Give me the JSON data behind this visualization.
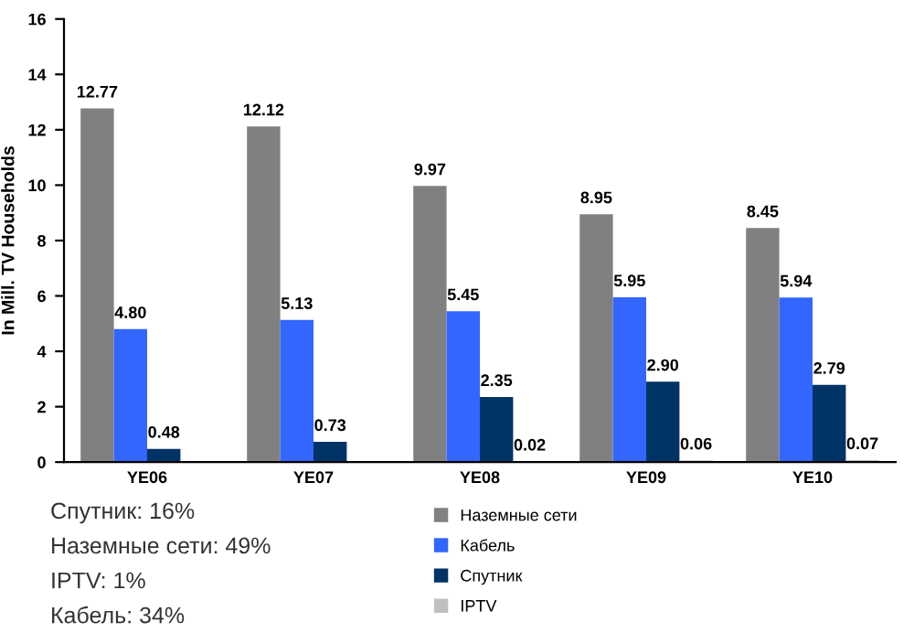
{
  "chart_data": {
    "type": "bar",
    "ylabel": "In Mill. TV Households",
    "categories": [
      "YE06",
      "YE07",
      "YE08",
      "YE09",
      "YE10"
    ],
    "series": [
      {
        "name": "Наземные сети",
        "color": "#808080",
        "values": [
          12.77,
          12.12,
          9.97,
          8.95,
          8.45
        ],
        "value_labels": [
          "12.77",
          "12.12",
          "9.97",
          "8.95",
          "8.45"
        ]
      },
      {
        "name": "Кабель",
        "color": "#3366ff",
        "values": [
          4.8,
          5.13,
          5.45,
          5.95,
          5.94
        ],
        "value_labels": [
          "4.80",
          "5.13",
          "5.45",
          "5.95",
          "5.94"
        ]
      },
      {
        "name": "Спутник",
        "color": "#003366",
        "values": [
          0.48,
          0.73,
          2.35,
          2.9,
          2.79
        ],
        "value_labels": [
          "0.48",
          "0.73",
          "2.35",
          "2.90",
          "2.79"
        ]
      },
      {
        "name": "IPTV",
        "color": "#c0c0c0",
        "values": [
          null,
          null,
          0.02,
          0.06,
          0.07
        ],
        "value_labels": [
          null,
          null,
          "0.02",
          "0.06",
          "0.07"
        ]
      }
    ],
    "ylim": [
      0,
      16
    ],
    "yticks": [
      0,
      2,
      4,
      6,
      8,
      10,
      12,
      14,
      16
    ],
    "grid": false,
    "legend": "bottom",
    "annotations": [
      "Спутник: 16%",
      "Наземные сети: 49%",
      "IPTV: 1%",
      "Кабель: 34%"
    ]
  }
}
